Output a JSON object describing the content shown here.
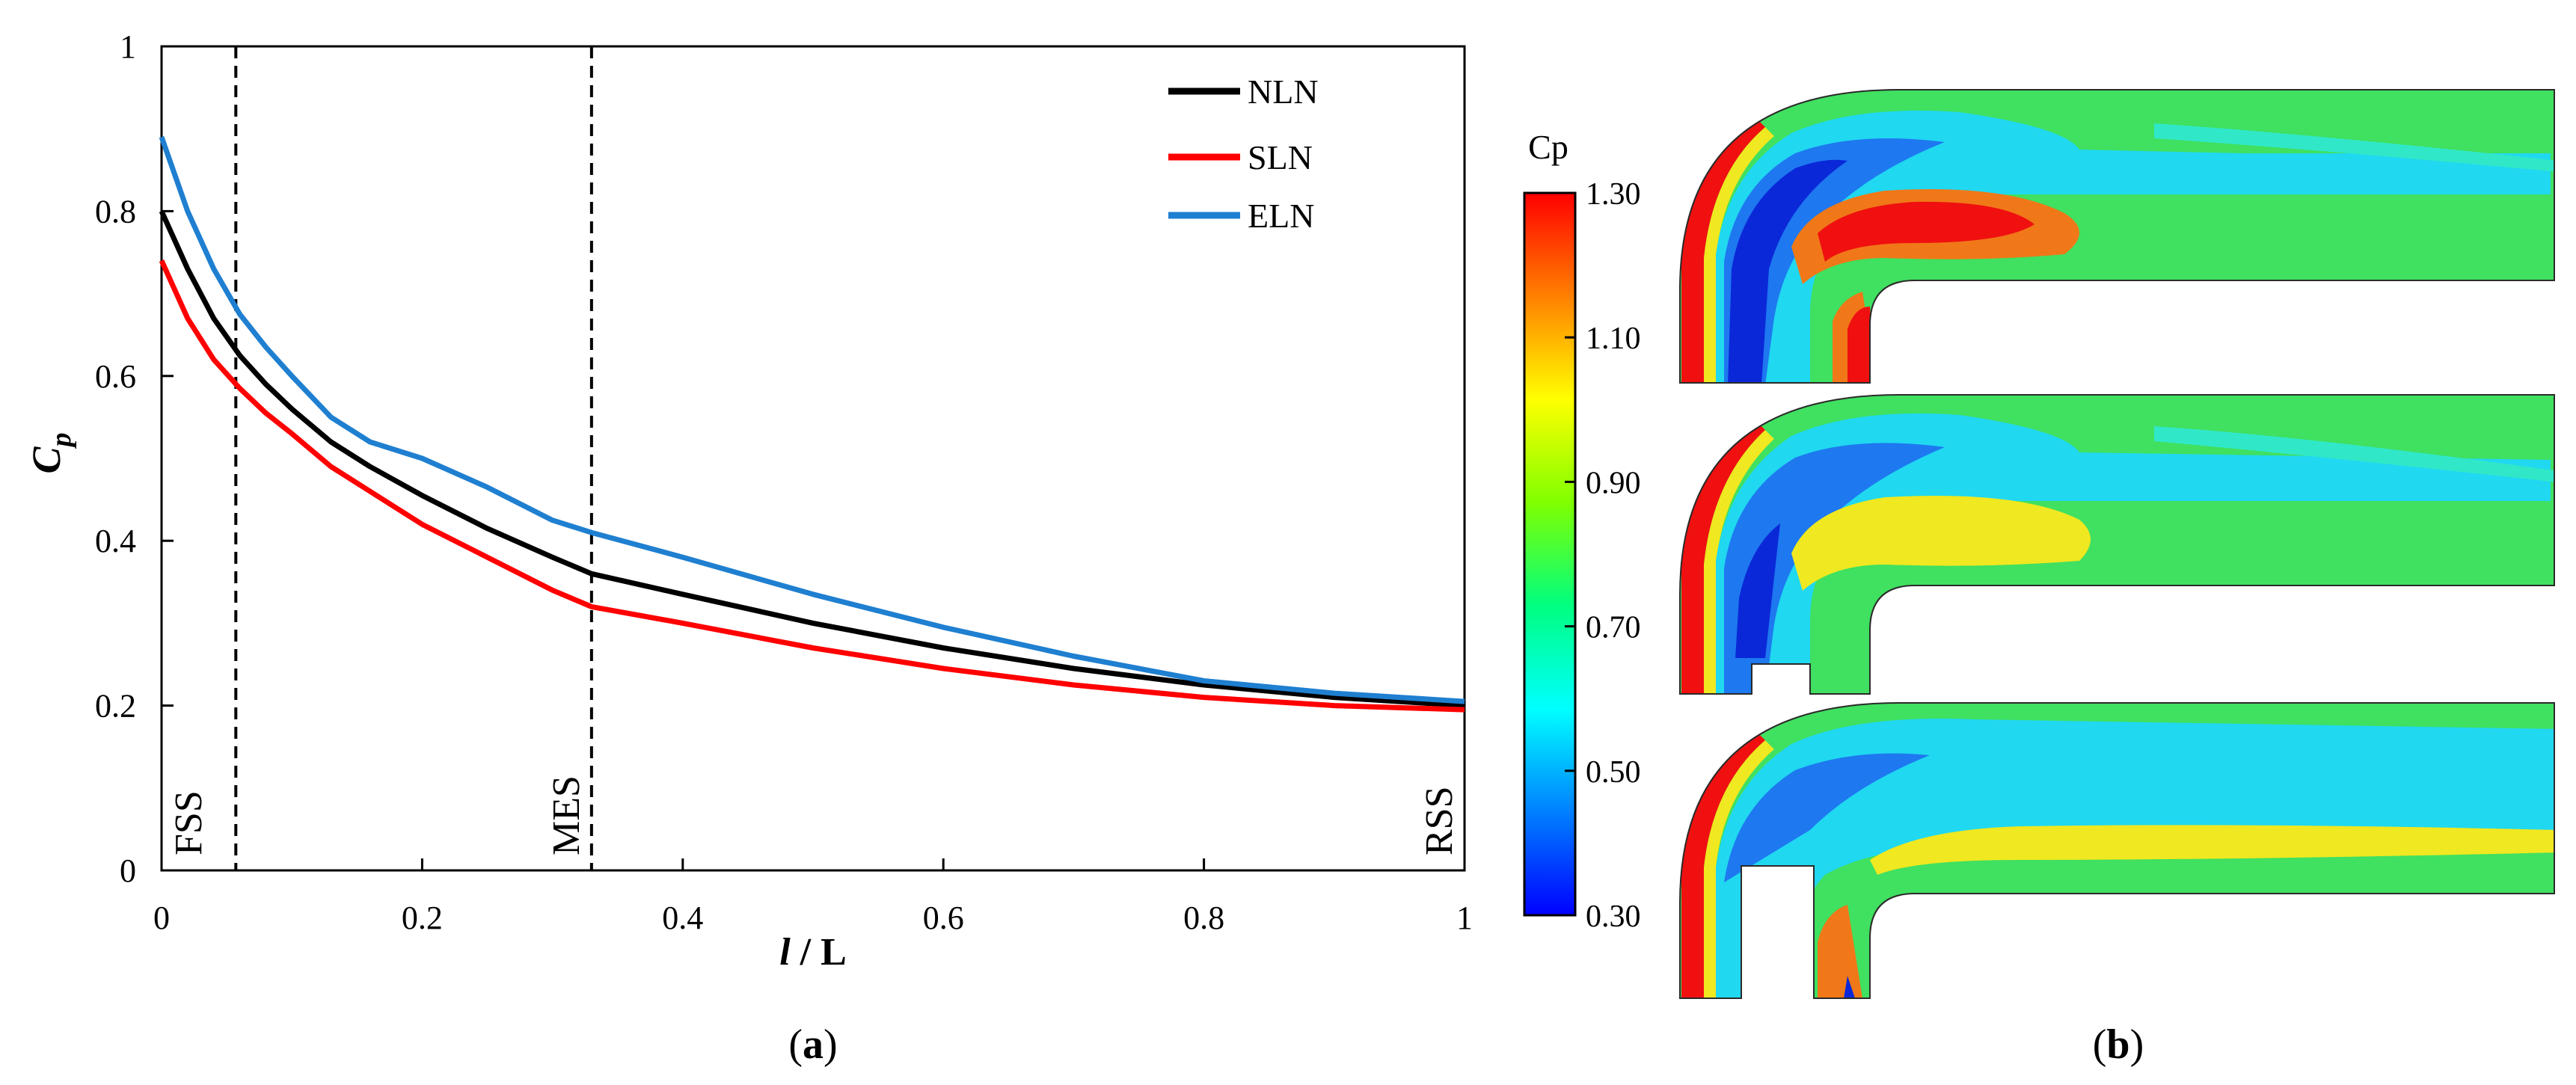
{
  "panel_a": {
    "caption_open": "(",
    "caption_letter": "a",
    "caption_close": ")"
  },
  "panel_b": {
    "caption_open": "(",
    "caption_letter": "b",
    "caption_close": ")",
    "colorbar": {
      "title": "Cp",
      "ticks": [
        "1.30",
        "1.10",
        "0.90",
        "0.70",
        "0.50",
        "0.30"
      ],
      "min": 0.3,
      "max": 1.3,
      "colors": [
        "#0000ff",
        "#0080ff",
        "#00ffff",
        "#00ff80",
        "#80ff00",
        "#ffff00",
        "#ff8000",
        "#ff0000"
      ]
    },
    "contour_colors": {
      "dark_blue": "#0a28d8",
      "blue": "#1e78f0",
      "cyan": "#20d8f0",
      "aqua": "#30e8c8",
      "green": "#40e060",
      "yellow": "#f0e820",
      "orange": "#f07818",
      "red": "#f01010"
    }
  },
  "chart_data": {
    "type": "line",
    "title": "",
    "xlabel_italic": "l",
    "xlabel_rest": " / L",
    "ylabel_main": "C",
    "ylabel_sub": "p",
    "xlim": [
      0,
      1
    ],
    "ylim": [
      0,
      1
    ],
    "xticks": [
      0,
      0.2,
      0.4,
      0.6,
      0.8,
      1
    ],
    "xtick_labels": [
      "0",
      "0.2",
      "0.4",
      "0.6",
      "0.8",
      "1"
    ],
    "yticks": [
      0,
      0.2,
      0.4,
      0.6,
      0.8,
      1
    ],
    "ytick_labels": [
      "0",
      "0.2",
      "0.4",
      "0.6",
      "0.8",
      "1"
    ],
    "grid": false,
    "legend_position": "top-right",
    "series": [
      {
        "name": "NLN",
        "color": "#000000",
        "x": [
          0,
          0.02,
          0.04,
          0.06,
          0.08,
          0.1,
          0.13,
          0.16,
          0.2,
          0.25,
          0.3,
          0.33,
          0.4,
          0.5,
          0.6,
          0.7,
          0.8,
          0.9,
          1.0
        ],
        "y": [
          0.8,
          0.73,
          0.67,
          0.625,
          0.59,
          0.56,
          0.52,
          0.49,
          0.455,
          0.415,
          0.38,
          0.36,
          0.335,
          0.3,
          0.27,
          0.245,
          0.225,
          0.21,
          0.2
        ]
      },
      {
        "name": "SLN",
        "color": "#ff0000",
        "x": [
          0,
          0.02,
          0.04,
          0.06,
          0.08,
          0.1,
          0.13,
          0.16,
          0.2,
          0.25,
          0.3,
          0.33,
          0.4,
          0.5,
          0.6,
          0.7,
          0.8,
          0.9,
          1.0
        ],
        "y": [
          0.74,
          0.67,
          0.62,
          0.585,
          0.555,
          0.53,
          0.49,
          0.46,
          0.42,
          0.38,
          0.34,
          0.32,
          0.3,
          0.27,
          0.245,
          0.225,
          0.21,
          0.2,
          0.195
        ]
      },
      {
        "name": "ELN",
        "color": "#1f7fd0",
        "x": [
          0,
          0.02,
          0.04,
          0.06,
          0.08,
          0.1,
          0.13,
          0.16,
          0.2,
          0.25,
          0.3,
          0.33,
          0.4,
          0.5,
          0.6,
          0.7,
          0.8,
          0.9,
          1.0
        ],
        "y": [
          0.89,
          0.8,
          0.73,
          0.675,
          0.635,
          0.6,
          0.55,
          0.52,
          0.5,
          0.465,
          0.425,
          0.41,
          0.38,
          0.335,
          0.295,
          0.26,
          0.23,
          0.215,
          0.205
        ]
      }
    ],
    "vlines": [
      {
        "x": 0.057,
        "label": "FSS"
      },
      {
        "x": 0.33,
        "label": "MES"
      }
    ],
    "annotations": [
      {
        "x": 0.02,
        "label": "FSS"
      },
      {
        "x": 0.31,
        "label": "MES"
      },
      {
        "x": 0.98,
        "label": "RSS"
      }
    ]
  }
}
